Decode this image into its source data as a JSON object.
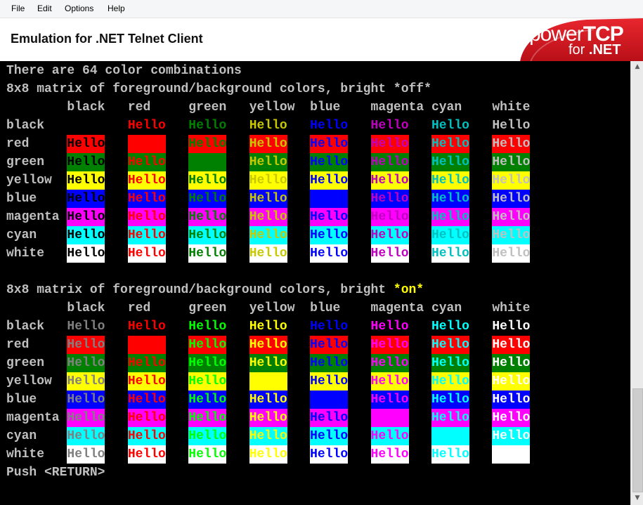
{
  "menu": {
    "items": [
      "File",
      "Edit",
      "Options",
      "Help"
    ]
  },
  "header": {
    "title": "Emulation for .NET Telnet Client"
  },
  "logo": {
    "power": "power",
    "tcp": "TCP",
    "for": "for",
    "net": ".NET",
    "color": "#d0161e"
  },
  "scrollbar": {
    "up_icon": "chevron-up-icon",
    "down_icon": "chevron-down-icon"
  },
  "terminal": {
    "background": "#000000",
    "default_color": "#c0c0c0",
    "cell_text": "Hello",
    "colors": {
      "normal": [
        "#000000",
        "#ff0000",
        "#008000",
        "#c8c800",
        "#0000ff",
        "#c000c0",
        "#00c0c0",
        "#c0c0c0"
      ],
      "bright": [
        "#808080",
        "#ff0000",
        "#00ff00",
        "#ffff00",
        "#0000ff",
        "#ff00ff",
        "#00ffff",
        "#ffffff"
      ],
      "background": [
        "#000000",
        "#ff0000",
        "#008000",
        "#ffff00",
        "#0000ff",
        "#ff00ff",
        "#00ffff",
        "#ffffff"
      ]
    },
    "color_names": [
      "black",
      "red",
      "green",
      "yellow",
      "blue",
      "magenta",
      "cyan",
      "white"
    ],
    "intro": "There are 64 color combinations",
    "matrix_off_heading": {
      "prefix": "8x8 matrix of foreground/background colors, bright ",
      "emphasis": "*off*"
    },
    "matrix_on_heading": {
      "prefix": "8x8 matrix of foreground/background colors, bright ",
      "emphasis": "*on*",
      "emphasis_color": "#ffff00"
    },
    "footer": "Push <RETURN>"
  }
}
